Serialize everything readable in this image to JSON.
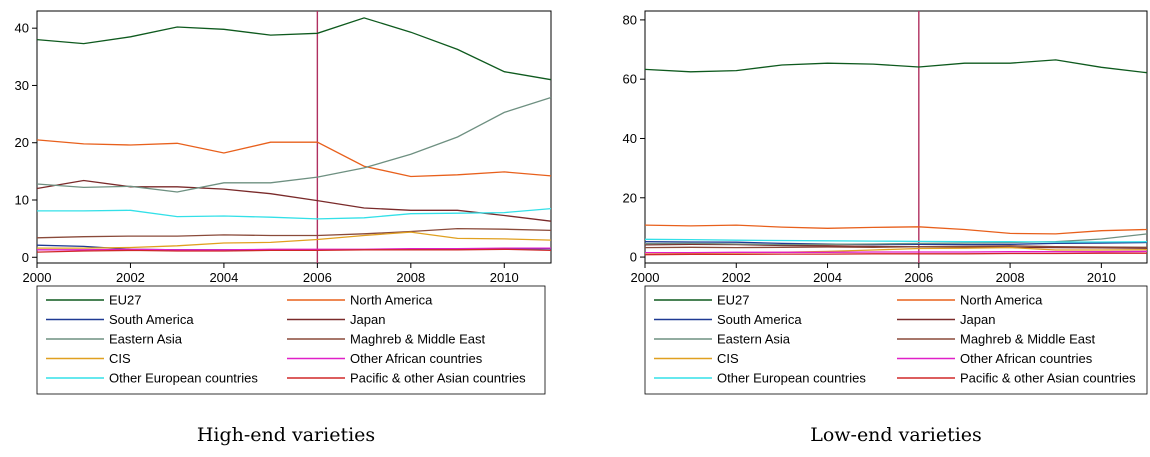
{
  "chart_data": [
    {
      "type": "line",
      "caption": "High-end varieties",
      "x": [
        2000,
        2001,
        2002,
        2003,
        2004,
        2005,
        2006,
        2007,
        2008,
        2009,
        2010,
        2011
      ],
      "xticks": [
        "2000",
        "2002",
        "2004",
        "2006",
        "2008",
        "2010"
      ],
      "xtick_values": [
        2000,
        2002,
        2004,
        2006,
        2008,
        2010
      ],
      "yticks": [
        "0",
        "10",
        "20",
        "30",
        "40"
      ],
      "ytick_values": [
        0,
        10,
        20,
        30,
        40
      ],
      "xlim": [
        2000,
        2011
      ],
      "ylim": [
        -1,
        43
      ],
      "vline_x": 2006,
      "vline_color": "#b03060",
      "series": [
        {
          "name": "EU27",
          "color": "#0e5a1e",
          "values": [
            38,
            37.3,
            38.5,
            40.2,
            39.8,
            38.8,
            39.1,
            41.8,
            39.3,
            36.3,
            32.4,
            31
          ]
        },
        {
          "name": "North America",
          "color": "#e8601c",
          "values": [
            20.5,
            19.8,
            19.6,
            19.9,
            18.2,
            20.1,
            20.1,
            15.9,
            14.1,
            14.4,
            14.9,
            14.2
          ]
        },
        {
          "name": "South America",
          "color": "#1f3a93",
          "values": [
            2.1,
            1.9,
            1.4,
            1.3,
            1.3,
            1.3,
            1.3,
            1.3,
            1.3,
            1.4,
            1.5,
            1.5
          ]
        },
        {
          "name": "Japan",
          "color": "#7a2a2a",
          "values": [
            12,
            13.4,
            12.3,
            12.3,
            11.9,
            11.1,
            9.9,
            8.6,
            8.2,
            8.2,
            7.3,
            6.3
          ]
        },
        {
          "name": "Eastern Asia",
          "color": "#6e9081",
          "values": [
            12.8,
            12.2,
            12.4,
            11.4,
            13,
            13,
            14,
            15.6,
            18,
            21,
            25.3,
            27.9
          ]
        },
        {
          "name": "Maghreb & Middle East",
          "color": "#8a4a3a",
          "values": [
            3.4,
            3.6,
            3.7,
            3.7,
            3.9,
            3.8,
            3.8,
            4.1,
            4.5,
            5,
            4.9,
            4.7
          ]
        },
        {
          "name": "CIS",
          "color": "#e0a020",
          "values": [
            1.6,
            1.6,
            1.7,
            2,
            2.5,
            2.6,
            3.1,
            3.8,
            4.4,
            3.3,
            3.2,
            3
          ]
        },
        {
          "name": "Other African countries",
          "color": "#e020c8",
          "values": [
            1.3,
            1.3,
            1.4,
            1.3,
            1.3,
            1.4,
            1.4,
            1.4,
            1.5,
            1.5,
            1.6,
            1.6
          ]
        },
        {
          "name": "Other European countries",
          "color": "#33e0e8",
          "values": [
            8.1,
            8.1,
            8.2,
            7.1,
            7.2,
            7,
            6.7,
            6.9,
            7.6,
            7.7,
            7.8,
            8.5
          ]
        },
        {
          "name": "Pacific & other Asian countries",
          "color": "#d02828",
          "values": [
            0.9,
            1.1,
            1.2,
            1.1,
            1.1,
            1.2,
            1.2,
            1.3,
            1.3,
            1.3,
            1.4,
            1.2
          ]
        }
      ]
    },
    {
      "type": "line",
      "caption": "Low-end varieties",
      "x": [
        2000,
        2001,
        2002,
        2003,
        2004,
        2005,
        2006,
        2007,
        2008,
        2009,
        2010,
        2011
      ],
      "xticks": [
        "2000",
        "2002",
        "2004",
        "2006",
        "2008",
        "2010"
      ],
      "xtick_values": [
        2000,
        2002,
        2004,
        2006,
        2008,
        2010
      ],
      "yticks": [
        "0",
        "20",
        "40",
        "60",
        "80"
      ],
      "ytick_values": [
        0,
        20,
        40,
        60,
        80
      ],
      "xlim": [
        2000,
        2011
      ],
      "ylim": [
        -2,
        83
      ],
      "vline_x": 2006,
      "vline_color": "#b03060",
      "series": [
        {
          "name": "EU27",
          "color": "#0e5a1e",
          "values": [
            63.3,
            62.5,
            62.9,
            64.8,
            65.4,
            65.1,
            64.1,
            65.4,
            65.4,
            66.5,
            64,
            62.2
          ]
        },
        {
          "name": "North America",
          "color": "#e8601c",
          "values": [
            10.8,
            10.5,
            10.8,
            10.1,
            9.7,
            10,
            10.2,
            9.3,
            8,
            7.8,
            8.9,
            9.3
          ]
        },
        {
          "name": "South America",
          "color": "#1f3a93",
          "values": [
            5.2,
            5.1,
            5,
            4.6,
            4.4,
            4.2,
            4.3,
            4.2,
            4.3,
            4.6,
            4.7,
            4.9
          ]
        },
        {
          "name": "Japan",
          "color": "#7a2a2a",
          "values": [
            4.1,
            4.3,
            4.2,
            3.9,
            3.8,
            3.6,
            3.5,
            3.4,
            3.3,
            3.2,
            3.1,
            3
          ]
        },
        {
          "name": "Eastern Asia",
          "color": "#6e9081",
          "values": [
            4.5,
            4.6,
            4.4,
            4.2,
            4.3,
            4.4,
            4.6,
            4.7,
            4.9,
            5.2,
            6.1,
            7.8
          ]
        },
        {
          "name": "Maghreb & Middle East",
          "color": "#8a4a3a",
          "values": [
            3.2,
            3.3,
            3.2,
            3.3,
            3.4,
            3.3,
            3.5,
            3.6,
            3.8,
            3.5,
            3.4,
            3.3
          ]
        },
        {
          "name": "CIS",
          "color": "#e0a020",
          "values": [
            1,
            1.2,
            1.4,
            1.6,
            1.9,
            2.4,
            2.9,
            3,
            3.2,
            2.4,
            2.4,
            2.5
          ]
        },
        {
          "name": "Other African countries",
          "color": "#e020c8",
          "values": [
            1.5,
            1.5,
            1.6,
            1.6,
            1.6,
            1.7,
            1.7,
            1.7,
            1.8,
            1.8,
            1.8,
            1.9
          ]
        },
        {
          "name": "Other European countries",
          "color": "#33e0e8",
          "values": [
            6,
            5.9,
            5.7,
            5.6,
            5.5,
            5.4,
            5.3,
            5.2,
            5.2,
            5.1,
            5.1,
            5.2
          ]
        },
        {
          "name": "Pacific & other Asian countries",
          "color": "#d02828",
          "values": [
            0.8,
            0.9,
            0.9,
            1,
            1,
            1.1,
            1.1,
            1.1,
            1.2,
            1.2,
            1.3,
            1.3
          ]
        }
      ]
    }
  ]
}
